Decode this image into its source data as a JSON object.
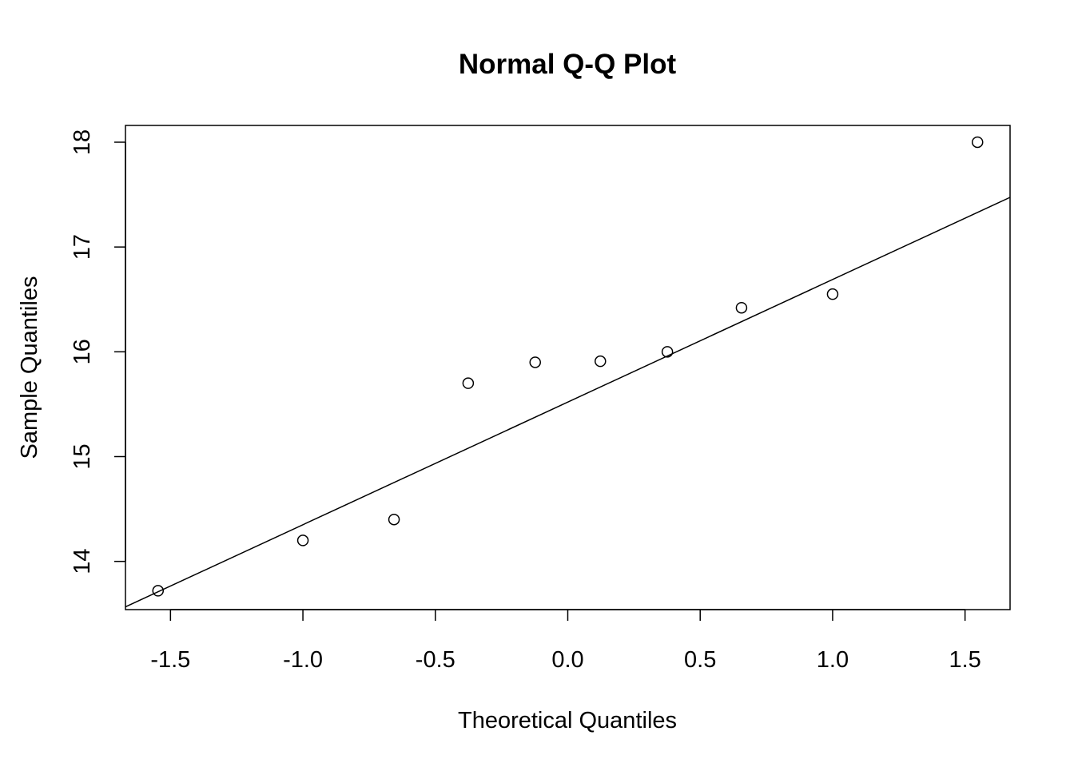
{
  "chart_data": {
    "type": "scatter",
    "title": "Normal Q-Q Plot",
    "xlabel": "Theoretical Quantiles",
    "ylabel": "Sample Quantiles",
    "xlim": [
      -1.67,
      1.67
    ],
    "ylim": [
      13.54,
      18.16
    ],
    "x_ticks": [
      "-1.5",
      "-1.0",
      "-0.5",
      "0.0",
      "0.5",
      "1.0",
      "1.5"
    ],
    "y_ticks": [
      "14",
      "15",
      "16",
      "17",
      "18"
    ],
    "points": [
      {
        "x": -1.547,
        "y": 13.72
      },
      {
        "x": -1.0,
        "y": 14.2
      },
      {
        "x": -0.656,
        "y": 14.4
      },
      {
        "x": -0.376,
        "y": 15.7
      },
      {
        "x": -0.123,
        "y": 15.9
      },
      {
        "x": 0.123,
        "y": 15.91
      },
      {
        "x": 0.376,
        "y": 16.0
      },
      {
        "x": 0.656,
        "y": 16.42
      },
      {
        "x": 1.0,
        "y": 16.55
      },
      {
        "x": 1.547,
        "y": 18.0
      }
    ],
    "reference_line": {
      "intercept": 15.52,
      "slope": 1.17
    },
    "grid": false,
    "legend": "none"
  }
}
